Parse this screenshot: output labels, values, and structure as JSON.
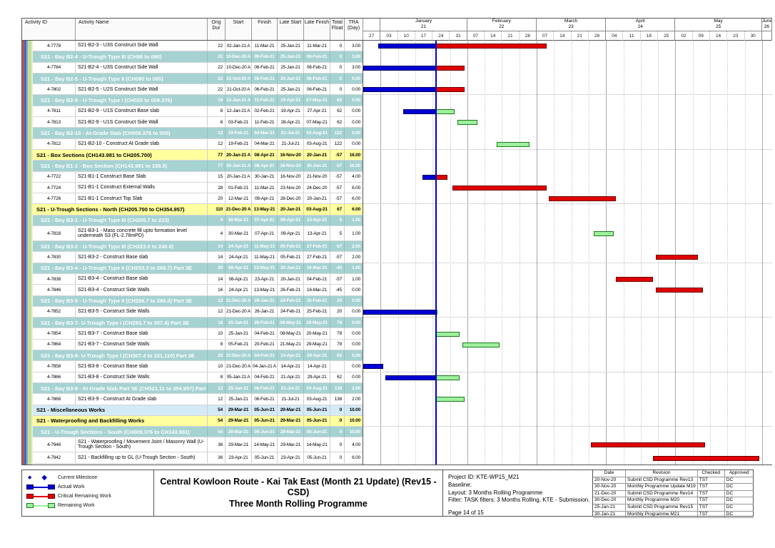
{
  "chart_data": {
    "type": "gantt",
    "chart_start": "2020-12-27",
    "chart_end": "2021-06-13",
    "data_date": "2021-01-25",
    "columns": [
      "Activity ID",
      "Activity Name",
      "Orig Dur",
      "Start",
      "Finish",
      "Late Start",
      "Late Finish",
      "Total Float",
      "TRA (Day)"
    ],
    "timeline_months": [
      {
        "name": "",
        "num": "",
        "weeks": [
          "27"
        ]
      },
      {
        "name": "January",
        "num": "21",
        "weeks": [
          "03",
          "10",
          "17",
          "24",
          "31"
        ]
      },
      {
        "name": "February",
        "num": "22",
        "weeks": [
          "07",
          "14",
          "21",
          "28"
        ]
      },
      {
        "name": "March",
        "num": "23",
        "weeks": [
          "07",
          "14",
          "21",
          "28"
        ]
      },
      {
        "name": "April",
        "num": "24",
        "weeks": [
          "04",
          "11",
          "18",
          "25"
        ]
      },
      {
        "name": "May",
        "num": "25",
        "weeks": [
          "02",
          "09",
          "16",
          "23",
          "30"
        ]
      },
      {
        "name": "June",
        "num": "26",
        "weeks": []
      }
    ],
    "rows": [
      {
        "type": "task",
        "id": "4-7778",
        "name": "S21-B2-3 - U3S Construct Side Wall",
        "dur": "22",
        "start": "02-Jan-21 A",
        "finish": "11-Mar-21",
        "late_start": "25-Jan-21",
        "late_finish": "11-Mar-21",
        "tf": "0",
        "tra": "3.00",
        "bars": [
          {
            "t": "a",
            "f": "2021-01-02",
            "e": "2021-01-25"
          },
          {
            "t": "c",
            "f": "2021-01-25",
            "e": "2021-03-11"
          }
        ]
      },
      {
        "type": "band",
        "id": "",
        "name": "S21 - Bay B2-4 - U-Trough  Type III (CH96 to 080)",
        "dur": "22",
        "start": "10-Dec-20 A",
        "finish": "06-Feb-21",
        "late_start": "25-Jan-21",
        "late_finish": "06-Feb-21",
        "tf": "0",
        "tra": "3.00",
        "bars": []
      },
      {
        "type": "task",
        "id": "4-7784",
        "name": "S21-B2-4 - U3S Construct Side Wall",
        "dur": "22",
        "start": "10-Dec-20 A",
        "finish": "06-Feb-21",
        "late_start": "25-Jan-21",
        "late_finish": "06-Feb-21",
        "tf": "0",
        "tra": "3.00",
        "bars": [
          {
            "t": "a",
            "f": "2020-12-10",
            "e": "2021-01-25"
          },
          {
            "t": "c",
            "f": "2021-01-25",
            "e": "2021-02-06"
          }
        ]
      },
      {
        "type": "band",
        "id": "",
        "name": "S21 - Bay B2-5 - U-Trough  Type II (CH080 to 065)",
        "dur": "22",
        "start": "21-Oct-20 A",
        "finish": "06-Feb-21",
        "late_start": "25-Jan-21",
        "late_finish": "06-Feb-21",
        "tf": "0",
        "tra": "0.00",
        "bars": []
      },
      {
        "type": "task",
        "id": "4-7802",
        "name": "S21-B2-5 - U2S Construct Side Wall",
        "dur": "22",
        "start": "21-Oct-20 A",
        "finish": "06-Feb-21",
        "late_start": "25-Jan-21",
        "late_finish": "06-Feb-21",
        "tf": "0",
        "tra": "0.00",
        "bars": [
          {
            "t": "a",
            "f": "2020-10-21",
            "e": "2021-01-25"
          },
          {
            "t": "c",
            "f": "2021-01-25",
            "e": "2021-02-06"
          }
        ]
      },
      {
        "type": "band",
        "id": "",
        "name": "S21 - Bay B2-9 - U-Trough  Type I (CH020 to 009.376)",
        "dur": "16",
        "start": "12-Jan-21 A",
        "finish": "11-Feb-21",
        "late_start": "19-Apr-21",
        "late_finish": "07-May-21",
        "tf": "62",
        "tra": "0.00",
        "bars": []
      },
      {
        "type": "task",
        "id": "4-7811",
        "name": "S21-B2-9 - U1S Construct Base slab",
        "dur": "8",
        "start": "12-Jan-21 A",
        "finish": "02-Feb-21",
        "late_start": "19-Apr-21",
        "late_finish": "27-Apr-21",
        "tf": "62",
        "tra": "0.00",
        "bars": [
          {
            "t": "a",
            "f": "2021-01-12",
            "e": "2021-01-25"
          },
          {
            "t": "r",
            "f": "2021-01-25",
            "e": "2021-02-02"
          }
        ]
      },
      {
        "type": "task",
        "id": "4-7813",
        "name": "S21-B2-9 - U1S Construct Side Wall",
        "dur": "8",
        "start": "03-Feb-21",
        "finish": "11-Feb-21",
        "late_start": "28-Apr-21",
        "late_finish": "07-May-21",
        "tf": "62",
        "tra": "0.00",
        "bars": [
          {
            "t": "r",
            "f": "2021-02-03",
            "e": "2021-02-11"
          }
        ]
      },
      {
        "type": "band",
        "id": "",
        "name": "S21 -  Bay B2-10 - At-Grade Slab (CH009.376 to 000)",
        "dur": "12",
        "start": "19-Feb-21",
        "finish": "04-Mar-21",
        "late_start": "21-Jul-21",
        "late_finish": "03-Aug-21",
        "tf": "122",
        "tra": "0.00",
        "bars": []
      },
      {
        "type": "task",
        "id": "4-7812",
        "name": "S21-B2-10 - Construct At Grade slab",
        "dur": "12",
        "start": "19-Feb-21",
        "finish": "04-Mar-21",
        "late_start": "21-Jul-21",
        "late_finish": "03-Aug-21",
        "tf": "122",
        "tra": "0.00",
        "bars": [
          {
            "t": "r",
            "f": "2021-02-19",
            "e": "2021-03-04"
          }
        ]
      },
      {
        "type": "group",
        "id": "",
        "name": "S21 - Box Sections (CH143.981 to CH205.700)",
        "dur": "77",
        "start": "20-Jan-21 A",
        "finish": "08-Apr-21",
        "late_start": "16-Nov-20",
        "late_finish": "20-Jan-21",
        "tf": "-57",
        "tra": "16.00",
        "bars": []
      },
      {
        "type": "band",
        "id": "",
        "name": "S21 - Bay B1-1 - Box Section (CH143.981 to 159.5)",
        "dur": "77",
        "start": "20-Jan-21 A",
        "finish": "08-Apr-21",
        "late_start": "16-Nov-20",
        "late_finish": "20-Jan-21",
        "tf": "-57",
        "tra": "16.00",
        "bars": []
      },
      {
        "type": "task",
        "id": "4-7722",
        "name": "S21-B1-1 Construct Base Slab",
        "dur": "15",
        "start": "20-Jan-21 A",
        "finish": "30-Jan-21",
        "late_start": "16-Nov-20",
        "late_finish": "21-Nov-20",
        "tf": "-57",
        "tra": "4.00",
        "bars": [
          {
            "t": "a",
            "f": "2021-01-20",
            "e": "2021-01-25"
          },
          {
            "t": "c",
            "f": "2021-01-25",
            "e": "2021-01-30"
          }
        ]
      },
      {
        "type": "task",
        "id": "4-7724",
        "name": "S21-B1-1 Construct External Walls",
        "dur": "28",
        "start": "01-Feb-21",
        "finish": "11-Mar-21",
        "late_start": "23-Nov-20",
        "late_finish": "24-Dec-20",
        "tf": "-57",
        "tra": "6.00",
        "bars": [
          {
            "t": "c",
            "f": "2021-02-01",
            "e": "2021-03-11"
          }
        ]
      },
      {
        "type": "task",
        "id": "4-7726",
        "name": "S21-B1-1 Construct Top Slab",
        "dur": "20",
        "start": "12-Mar-21",
        "finish": "08-Apr-21",
        "late_start": "28-Dec-20",
        "late_finish": "20-Jan-21",
        "tf": "-57",
        "tra": "6.00",
        "bars": [
          {
            "t": "c",
            "f": "2021-03-12",
            "e": "2021-04-08"
          }
        ]
      },
      {
        "type": "group",
        "id": "",
        "name": "S21 - U-Trough Sections - North (CH205.700 to CH354.957)",
        "dur": "110",
        "start": "21-Dec-20 A",
        "finish": "13-May-21",
        "late_start": "20-Jan-21",
        "late_finish": "03-Aug-21",
        "tf": "67",
        "tra": "6.00",
        "bars": []
      },
      {
        "type": "band",
        "id": "",
        "name": "S21 - Bay B3-1 - U-Trough Type III (CH205.7 to 223)",
        "dur": "4",
        "start": "30-Mar-21",
        "finish": "07-Apr-21",
        "late_start": "09-Apr-21",
        "late_finish": "13-Apr-21",
        "tf": "5",
        "tra": "1.00",
        "bars": []
      },
      {
        "type": "task",
        "tall": true,
        "id": "4-7818",
        "name": "S21-B3-1 - Mass concrete fill upto formation level underneath S3 (FL-2.78mPD)",
        "dur": "4",
        "start": "30-Mar-21",
        "finish": "07-Apr-21",
        "late_start": "09-Apr-21",
        "late_finish": "13-Apr-21",
        "tf": "5",
        "tra": "1.00",
        "bars": [
          {
            "t": "r",
            "f": "2021-03-30",
            "e": "2021-04-07"
          }
        ]
      },
      {
        "type": "band",
        "id": "",
        "name": "S21 - Bay B3-2 - U-Trough  Type III (CH223.0 to 240.0)",
        "dur": "14",
        "start": "24-Apr-21",
        "finish": "11-May-21",
        "late_start": "05-Feb-21",
        "late_finish": "27-Feb-21",
        "tf": "-57",
        "tra": "2.00",
        "bars": []
      },
      {
        "type": "task",
        "id": "4-7830",
        "name": "S21-B3-2 - Construct Base slab",
        "dur": "14",
        "start": "24-Apr-21",
        "finish": "11-May-21",
        "late_start": "05-Feb-21",
        "late_finish": "27-Feb-21",
        "tf": "-57",
        "tra": "2.00",
        "bars": [
          {
            "t": "c",
            "f": "2021-04-24",
            "e": "2021-05-11"
          }
        ]
      },
      {
        "type": "band",
        "id": "",
        "name": "S21 - Bay B3-4 - U-Trough  Type II (CH253.3 to 266.7) Part 3E",
        "dur": "30",
        "start": "08-Apr-21",
        "finish": "13-May-21",
        "late_start": "20-Jan-21",
        "late_finish": "16-Mar-21",
        "tf": "-45",
        "tra": "1.00",
        "bars": []
      },
      {
        "type": "task",
        "id": "4-7838",
        "name": "S21-B3-4 - Construct Base slab",
        "dur": "14",
        "start": "08-Apr-21",
        "finish": "23-Apr-21",
        "late_start": "20-Jan-21",
        "late_finish": "04-Feb-21",
        "tf": "-57",
        "tra": "1.00",
        "bars": [
          {
            "t": "c",
            "f": "2021-04-08",
            "e": "2021-04-23"
          }
        ]
      },
      {
        "type": "task",
        "id": "4-7846",
        "name": "S21-B3-4 - Construct Side Walls",
        "dur": "16",
        "start": "24-Apr-21",
        "finish": "13-May-21",
        "late_start": "26-Feb-21",
        "late_finish": "16-Mar-21",
        "tf": "-45",
        "tra": "0.00",
        "bars": [
          {
            "t": "c",
            "f": "2021-04-24",
            "e": "2021-05-13"
          }
        ]
      },
      {
        "type": "band",
        "id": "",
        "name": "S21 - Bay B3-5 - U-Trough  Type II (CH266.7 to 280.0) Part 3E",
        "dur": "12",
        "start": "21-Dec-20 A",
        "finish": "26-Jan-21",
        "late_start": "24-Feb-21",
        "late_finish": "25-Feb-21",
        "tf": "20",
        "tra": "0.00",
        "bars": []
      },
      {
        "type": "task",
        "id": "4-7852",
        "name": "S21-B3-5 - Construct Side Walls",
        "dur": "12",
        "start": "21-Dec-20 A",
        "finish": "26-Jan-21",
        "late_start": "24-Feb-21",
        "late_finish": "25-Feb-21",
        "tf": "20",
        "tra": "0.00",
        "bars": [
          {
            "t": "a",
            "f": "2020-12-21",
            "e": "2021-01-25"
          },
          {
            "t": "r",
            "f": "2021-01-25",
            "e": "2021-01-26"
          }
        ]
      },
      {
        "type": "band",
        "id": "",
        "name": "S21 - Bay B3-7- U-Trough  Type I (CH293.7 to 307.4) Part 3E",
        "dur": "18",
        "start": "25-Jan-21",
        "finish": "20-Feb-21",
        "late_start": "08-May-21",
        "late_finish": "29-May-21",
        "tf": "78",
        "tra": "0.00",
        "bars": []
      },
      {
        "type": "task",
        "id": "4-7854",
        "name": "S21-B3-7 - Construct Base slab",
        "dur": "10",
        "start": "25-Jan-21",
        "finish": "04-Feb-21",
        "late_start": "08-May-21",
        "late_finish": "20-May-21",
        "tf": "78",
        "tra": "0.00",
        "bars": [
          {
            "t": "r",
            "f": "2021-01-25",
            "e": "2021-02-04"
          }
        ]
      },
      {
        "type": "task",
        "id": "4-7864",
        "name": "S21-B3-7 - Construct Side Walls",
        "dur": "8",
        "start": "05-Feb-21",
        "finish": "20-Feb-21",
        "late_start": "21-May-21",
        "late_finish": "29-May-21",
        "tf": "78",
        "tra": "0.00",
        "bars": [
          {
            "t": "r",
            "f": "2021-02-05",
            "e": "2021-02-20"
          }
        ]
      },
      {
        "type": "band",
        "id": "",
        "name": "S21 - Bay B3-8- U-Trough  Type I (CH307.4 to 321.110) Part 3E",
        "dur": "20",
        "start": "21-Dec-20 A",
        "finish": "04-Feb-21",
        "late_start": "14-Apr-21",
        "late_finish": "29-Apr-21",
        "tf": "62",
        "tra": "0.00",
        "bars": []
      },
      {
        "type": "task",
        "id": "4-7858",
        "name": "S21-B3-8 - Construct Base slab",
        "dur": "10",
        "start": "21-Dec-20 A",
        "finish": "04-Jan-21 A",
        "late_start": "14-Apr-21",
        "late_finish": "14-Apr-21",
        "tf": "",
        "tra": "0.00",
        "bars": [
          {
            "t": "a",
            "f": "2020-12-21",
            "e": "2021-01-04"
          }
        ]
      },
      {
        "type": "task",
        "id": "4-7866",
        "name": "S21-B3-8 - Construct Side Walls",
        "dur": "8",
        "start": "05-Jan-21 A",
        "finish": "04-Feb-21",
        "late_start": "21-Apr-21",
        "late_finish": "29-Apr-21",
        "tf": "62",
        "tra": "0.00",
        "bars": [
          {
            "t": "a",
            "f": "2021-01-05",
            "e": "2021-01-25"
          },
          {
            "t": "r",
            "f": "2021-01-25",
            "e": "2021-02-04"
          }
        ]
      },
      {
        "type": "band",
        "id": "",
        "name": "S21 - Bay B3-9 - At Grade Slab Part 3E (CH321.11 to 354.957) Part 3E",
        "dur": "12",
        "start": "25-Jan-21",
        "finish": "06-Feb-21",
        "late_start": "21-Jul-21",
        "late_finish": "03-Aug-21",
        "tf": "138",
        "tra": "2.00",
        "bars": []
      },
      {
        "type": "task",
        "id": "4-7868",
        "name": "S21-B3-9 - Construct At Grade slab",
        "dur": "12",
        "start": "25-Jan-21",
        "finish": "06-Feb-21",
        "late_start": "21-Jul-21",
        "late_finish": "03-Aug-21",
        "tf": "138",
        "tra": "2.00",
        "bars": [
          {
            "t": "r",
            "f": "2021-01-25",
            "e": "2021-02-06"
          }
        ]
      },
      {
        "type": "group-blue",
        "id": "",
        "name": "S21 - Miscellaneous Works",
        "dur": "54",
        "start": "29-Mar-21",
        "finish": "05-Jun-21",
        "late_start": "29-Mar-21",
        "late_finish": "05-Jun-21",
        "tf": "0",
        "tra": "10.00",
        "bars": []
      },
      {
        "type": "group",
        "id": "",
        "name": "S21 - Waterproofing and Backfilling Works",
        "dur": "54",
        "start": "29-Mar-21",
        "finish": "05-Jun-21",
        "late_start": "29-Mar-21",
        "late_finish": "05-Jun-21",
        "tf": "0",
        "tra": "10.00",
        "bars": []
      },
      {
        "type": "band",
        "id": "",
        "name": "S21 - U-Trough Sections - South (CH009.376 to CH143.981)",
        "dur": "54",
        "start": "29-Mar-21",
        "finish": "05-Jun-21",
        "late_start": "29-Mar-21",
        "late_finish": "05-Jun-21",
        "tf": "0",
        "tra": "10.00",
        "bars": []
      },
      {
        "type": "task",
        "tall": true,
        "id": "4-7948",
        "name": "S21 - Waterproofing / Movement Joint / Masonry Wall (U-Trough Section - South)",
        "dur": "36",
        "start": "29-Mar-21",
        "finish": "14-May-21",
        "late_start": "29-Mar-21",
        "late_finish": "14-May-21",
        "tf": "0",
        "tra": "4.00",
        "bars": [
          {
            "t": "c",
            "f": "2021-03-29",
            "e": "2021-05-14"
          }
        ]
      },
      {
        "type": "task",
        "id": "4-7942",
        "name": "S21 - Backfilling up to GL (U-Trough Section - South)",
        "dur": "36",
        "start": "23-Apr-21",
        "finish": "05-Jun-21",
        "late_start": "23-Apr-21",
        "late_finish": "05-Jun-21",
        "tf": "0",
        "tra": "6.00",
        "bars": [
          {
            "t": "c",
            "f": "2021-04-23",
            "e": "2021-06-05"
          }
        ]
      }
    ]
  },
  "legend": {
    "items": [
      {
        "icon": "milestone-icon",
        "label": "Current Milestone"
      },
      {
        "icon": "actual-bar-icon",
        "label": "Actual Work"
      },
      {
        "icon": "critical-bar-icon",
        "label": "Critical Remaining Work"
      },
      {
        "icon": "remaining-bar-icon",
        "label": "Remaining Work"
      }
    ]
  },
  "title": {
    "line1": "Central Kowloon Route - Kai Tak East (Month 21 Update) (Rev15 - CSD)",
    "line2": "Three Month Rolling Programme"
  },
  "info": {
    "project_id": "Project ID: KTE-WP15_M21",
    "baseline": "Baseline:",
    "layout": "Layout: 3 Months Rolling Programme",
    "filter": "Filter: TASK filters: 3 Months Rolling, KTE - Submission.",
    "page": "Page 14 of 15"
  },
  "revisions": {
    "headers": [
      "Date",
      "Revision",
      "Checked",
      "Approved"
    ],
    "rows": [
      [
        "20-Nov-20",
        "Submit CSD Programme Rev13",
        "TST",
        "DC"
      ],
      [
        "30-Nov-20",
        "Monthly Programme Update M19",
        "TST",
        "DC"
      ],
      [
        "21-Dec-20",
        "Submit CSD Programme Rev14",
        "TST",
        "DC"
      ],
      [
        "30-Dec-20",
        "Monthly Programme M20",
        "TST",
        "DC"
      ],
      [
        "25-Jan-21",
        "Submit CSD Programme Rev15",
        "TST",
        "DC"
      ],
      [
        "30-Jan-21",
        "Monthly Programme M21",
        "TST",
        "DC"
      ]
    ]
  },
  "colors": {
    "actual": "#0000d6",
    "critical": "#e00000",
    "remaining": "#9df09d",
    "data_date_line": "#0000cc",
    "band_bg": "#a6d2d2",
    "group_bg": "#ffff9e",
    "group_blue_bg": "#d4eaf6",
    "stripe_colors": [
      "#b05a50",
      "#4a66c8",
      "#7fb2c8",
      "#d8d88a",
      "#b8e0a0",
      "#f0ead2"
    ]
  }
}
